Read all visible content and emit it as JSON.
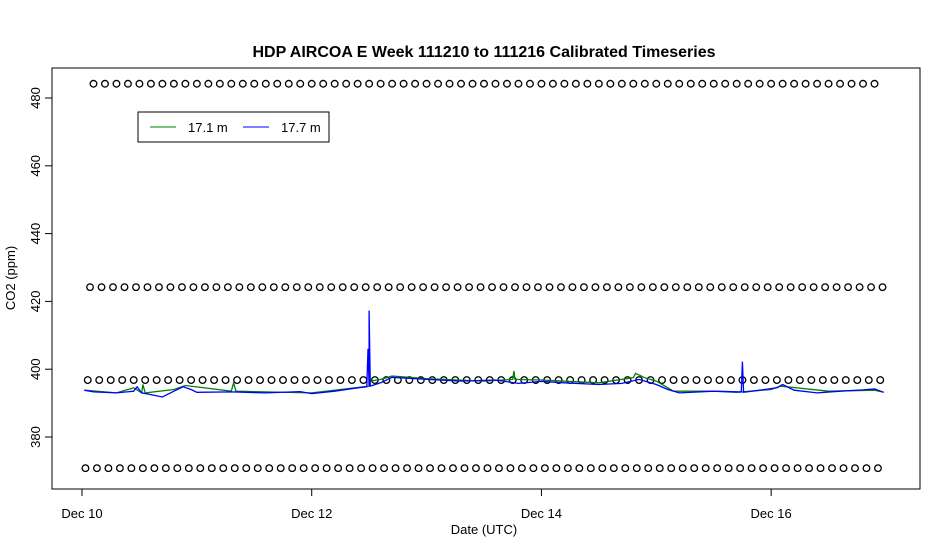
{
  "chart_data": {
    "type": "line",
    "title": "HDP AIRCOA E  Week 111210 to 111216  Calibrated Timeseries",
    "xlabel": "Date (UTC)",
    "ylabel": "CO2 (ppm)",
    "x_range_days": [
      10.0,
      17.0
    ],
    "x_ticks": [
      {
        "day": 10,
        "label": "Dec 10"
      },
      {
        "day": 12,
        "label": "Dec 12"
      },
      {
        "day": 14,
        "label": "Dec 14"
      },
      {
        "day": 16,
        "label": "Dec 16"
      }
    ],
    "ylim": [
      366,
      488
    ],
    "y_ticks": [
      380,
      400,
      420,
      440,
      460,
      480
    ],
    "grid": false,
    "legend": {
      "position": "top-left",
      "entries": [
        {
          "name": "17.1 m",
          "color": "#008000"
        },
        {
          "name": "17.7 m",
          "color": "#0000ff"
        }
      ]
    },
    "series": [
      {
        "name": "17.1 m",
        "color": "#008000",
        "points": [
          [
            10.02,
            393.8
          ],
          [
            10.3,
            393.0
          ],
          [
            10.45,
            394.5
          ],
          [
            10.52,
            393.0
          ],
          [
            10.53,
            395.5
          ],
          [
            10.55,
            393.0
          ],
          [
            10.8,
            394.0
          ],
          [
            10.9,
            395.2
          ],
          [
            11.3,
            393.5
          ],
          [
            11.32,
            396.0
          ],
          [
            11.34,
            393.5
          ],
          [
            12.0,
            393.0
          ],
          [
            12.5,
            395.0
          ],
          [
            12.51,
            396.5
          ],
          [
            12.6,
            397.0
          ],
          [
            12.7,
            398.0
          ],
          [
            13.0,
            397.2
          ],
          [
            13.5,
            396.5
          ],
          [
            13.75,
            397.0
          ],
          [
            13.76,
            399.5
          ],
          [
            13.77,
            397.0
          ],
          [
            14.0,
            396.8
          ],
          [
            14.5,
            396.0
          ],
          [
            14.8,
            397.5
          ],
          [
            14.82,
            398.8
          ],
          [
            14.9,
            397.5
          ],
          [
            15.0,
            396.5
          ],
          [
            15.15,
            393.5
          ],
          [
            15.5,
            393.5
          ],
          [
            15.7,
            393.2
          ],
          [
            16.0,
            394.0
          ],
          [
            16.08,
            395.0
          ],
          [
            16.5,
            393.5
          ],
          [
            16.9,
            393.8
          ],
          [
            16.98,
            393.2
          ]
        ]
      },
      {
        "name": "17.7 m",
        "color": "#0000ff",
        "points": [
          [
            10.02,
            393.8
          ],
          [
            10.1,
            393.3
          ],
          [
            10.3,
            393.0
          ],
          [
            10.45,
            393.5
          ],
          [
            10.48,
            394.8
          ],
          [
            10.52,
            393.0
          ],
          [
            10.6,
            392.5
          ],
          [
            10.7,
            391.8
          ],
          [
            10.8,
            393.5
          ],
          [
            10.88,
            394.8
          ],
          [
            10.95,
            394.0
          ],
          [
            11.0,
            393.2
          ],
          [
            11.3,
            393.3
          ],
          [
            11.6,
            393.0
          ],
          [
            11.9,
            393.4
          ],
          [
            12.0,
            392.8
          ],
          [
            12.2,
            393.5
          ],
          [
            12.4,
            394.5
          ],
          [
            12.48,
            394.8
          ],
          [
            12.49,
            406.0
          ],
          [
            12.5,
            395.0
          ],
          [
            12.5,
            417.3
          ],
          [
            12.51,
            395.0
          ],
          [
            12.6,
            396.0
          ],
          [
            12.7,
            397.6
          ],
          [
            12.8,
            397.4
          ],
          [
            13.0,
            397.0
          ],
          [
            13.3,
            396.5
          ],
          [
            13.6,
            396.8
          ],
          [
            13.8,
            395.8
          ],
          [
            14.0,
            396.4
          ],
          [
            14.2,
            396.0
          ],
          [
            14.5,
            395.5
          ],
          [
            14.7,
            395.8
          ],
          [
            14.85,
            397.0
          ],
          [
            15.0,
            395.5
          ],
          [
            15.1,
            394.0
          ],
          [
            15.2,
            393.0
          ],
          [
            15.5,
            393.5
          ],
          [
            15.74,
            393.3
          ],
          [
            15.75,
            402.2
          ],
          [
            15.76,
            393.2
          ],
          [
            15.9,
            393.8
          ],
          [
            16.05,
            394.5
          ],
          [
            16.1,
            395.5
          ],
          [
            16.2,
            393.8
          ],
          [
            16.4,
            393.0
          ],
          [
            16.6,
            393.5
          ],
          [
            16.8,
            393.9
          ],
          [
            16.9,
            394.2
          ],
          [
            16.98,
            393.2
          ]
        ]
      },
      {
        "name": "calibration reference levels",
        "markers": "open-circle",
        "levels": [
          {
            "y": 484.2,
            "x_start": 10.1,
            "x_end": 16.98
          },
          {
            "y": 424.2,
            "x_start": 10.07,
            "x_end": 16.98
          },
          {
            "y": 396.8,
            "x_start": 10.05,
            "x_end": 16.98
          },
          {
            "y": 370.8,
            "x_start": 10.03,
            "x_end": 16.98
          }
        ],
        "spacing_days": 0.1
      }
    ]
  }
}
